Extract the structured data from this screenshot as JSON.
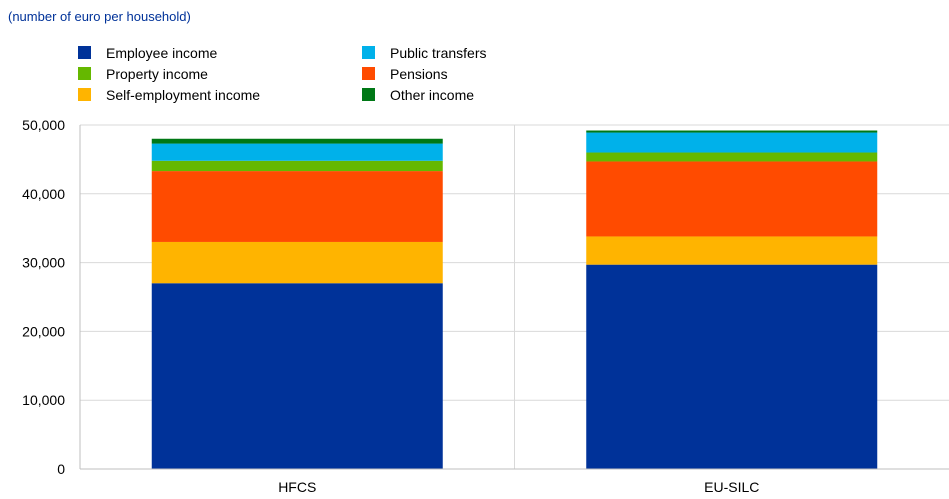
{
  "subtitle": "(number of euro per household)",
  "colors": {
    "employee": "#003299",
    "self_employment": "#FFB400",
    "pensions": "#FF4B00",
    "property": "#65B800",
    "public_transfers": "#00B1EA",
    "other": "#007816",
    "grid": "#d9d9d9",
    "axis": "#bfbfbf"
  },
  "chart_data": {
    "type": "bar",
    "stacked": true,
    "categories": [
      "HFCS",
      "EU-SILC"
    ],
    "series": [
      {
        "name": "Employee income",
        "color_key": "employee",
        "values": [
          27000,
          29700
        ]
      },
      {
        "name": "Self-employment income",
        "color_key": "self_employment",
        "values": [
          6000,
          4100
        ]
      },
      {
        "name": "Pensions",
        "color_key": "pensions",
        "values": [
          10300,
          10900
        ]
      },
      {
        "name": "Property income",
        "color_key": "property",
        "values": [
          1500,
          1300
        ]
      },
      {
        "name": "Public transfers",
        "color_key": "public_transfers",
        "values": [
          2500,
          2900
        ]
      },
      {
        "name": "Other income",
        "color_key": "other",
        "values": [
          700,
          300
        ]
      }
    ],
    "ylim": [
      0,
      50000
    ],
    "yticks": [
      0,
      10000,
      20000,
      30000,
      40000,
      50000
    ],
    "ytick_labels": [
      "0",
      "10,000",
      "20,000",
      "30,000",
      "40,000",
      "50,000"
    ],
    "grid": true,
    "legend_position": "top-left",
    "legend_order": [
      0,
      3,
      1,
      4,
      2,
      5
    ]
  }
}
